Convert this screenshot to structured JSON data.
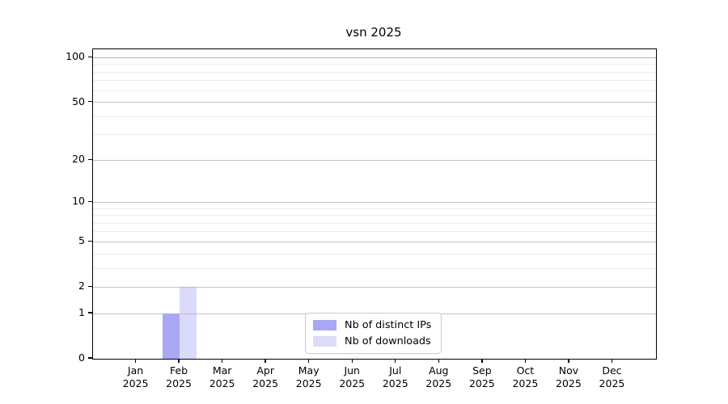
{
  "chart_data": {
    "type": "bar",
    "title": "vsn 2025",
    "scale": "log1p",
    "xlabel": "",
    "ylabel": "",
    "ylim": [
      0,
      114
    ],
    "grid": true,
    "legend_position": "bottom-center",
    "categories": [
      "Jan",
      "Feb",
      "Mar",
      "Apr",
      "May",
      "Jun",
      "Jul",
      "Aug",
      "Sep",
      "Oct",
      "Nov",
      "Dec"
    ],
    "category_year": "2025",
    "series": [
      {
        "name": "Nb of distinct IPs",
        "color": "#a8a8f3",
        "alpha": 1,
        "swatch_color": "#a8a8f3",
        "values": [
          0,
          1,
          0,
          0,
          0,
          0,
          0,
          0,
          0,
          0,
          0,
          0
        ]
      },
      {
        "name": "Nb of downloads",
        "color": "#a8a8f3",
        "alpha": 0.42,
        "swatch_color": "#dcdcf9",
        "values": [
          0,
          2,
          0,
          0,
          0,
          0,
          0,
          0,
          0,
          0,
          0,
          0
        ]
      }
    ],
    "y_ticks_major": [
      0,
      1,
      2,
      5,
      10,
      20,
      50,
      100
    ],
    "y_ticks_minor": [
      3,
      4,
      6,
      7,
      8,
      9,
      30,
      40,
      60,
      70,
      80,
      90
    ],
    "colors": {
      "grid_major": "#c4c4c4",
      "grid_top_major": "#b5b5b5",
      "grid_minor": "#ececec",
      "axis": "#000000",
      "background": "#ffffff"
    }
  }
}
